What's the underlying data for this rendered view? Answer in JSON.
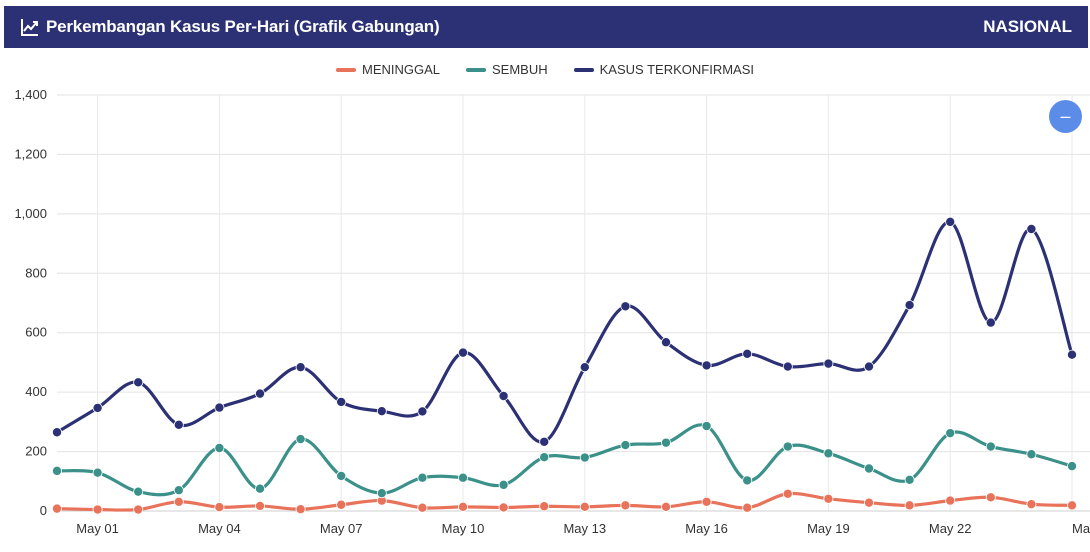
{
  "header": {
    "title": "Perkembangan Kasus Per-Hari (Grafik Gabungan)",
    "scope": "NASIONAL",
    "icon": "line-chart-icon"
  },
  "colors": {
    "header_bg": "#2b3174",
    "meninggal": "#e8735a",
    "sembuh": "#3b918a",
    "kasus": "#2b3174",
    "collapse_button": "#5b8de8"
  },
  "collapse_button": {
    "icon": "minus-icon",
    "label": "–"
  },
  "chart_data": {
    "type": "line",
    "legend_position": "top-center",
    "grid": true,
    "ylim": [
      0,
      1400
    ],
    "y_ticks": [
      "0",
      "200",
      "400",
      "600",
      "800",
      "1,000",
      "1,200",
      "1,400"
    ],
    "x_ticks": [
      "May 01",
      "May 04",
      "May 07",
      "May 10",
      "May 13",
      "May 16",
      "May 19",
      "May 22",
      "May"
    ],
    "x": [
      "2020-04-30",
      "2020-05-01",
      "2020-05-02",
      "2020-05-03",
      "2020-05-04",
      "2020-05-05",
      "2020-05-06",
      "2020-05-07",
      "2020-05-08",
      "2020-05-09",
      "2020-05-10",
      "2020-05-11",
      "2020-05-12",
      "2020-05-13",
      "2020-05-14",
      "2020-05-15",
      "2020-05-16",
      "2020-05-17",
      "2020-05-18",
      "2020-05-19",
      "2020-05-20",
      "2020-05-21",
      "2020-05-22",
      "2020-05-23",
      "2020-05-24",
      "2020-05-25"
    ],
    "series": [
      {
        "name": "MENINGGAL",
        "values": [
          8,
          5,
          5,
          31,
          13,
          17,
          6,
          21,
          35,
          11,
          14,
          12,
          16,
          14,
          19,
          14,
          31,
          11,
          58,
          41,
          28,
          19,
          35,
          46,
          23,
          19
        ]
      },
      {
        "name": "SEMBUH",
        "values": [
          135,
          129,
          65,
          70,
          212,
          75,
          242,
          118,
          60,
          112,
          112,
          88,
          181,
          180,
          222,
          230,
          286,
          103,
          217,
          194,
          143,
          105,
          262,
          217,
          191,
          151
        ]
      },
      {
        "name": "KASUS TERKONFIRMASI",
        "values": [
          265,
          347,
          433,
          290,
          348,
          395,
          484,
          367,
          336,
          335,
          533,
          387,
          233,
          484,
          689,
          568,
          490,
          529,
          486,
          496,
          486,
          693,
          973,
          634,
          949,
          526
        ]
      }
    ]
  }
}
